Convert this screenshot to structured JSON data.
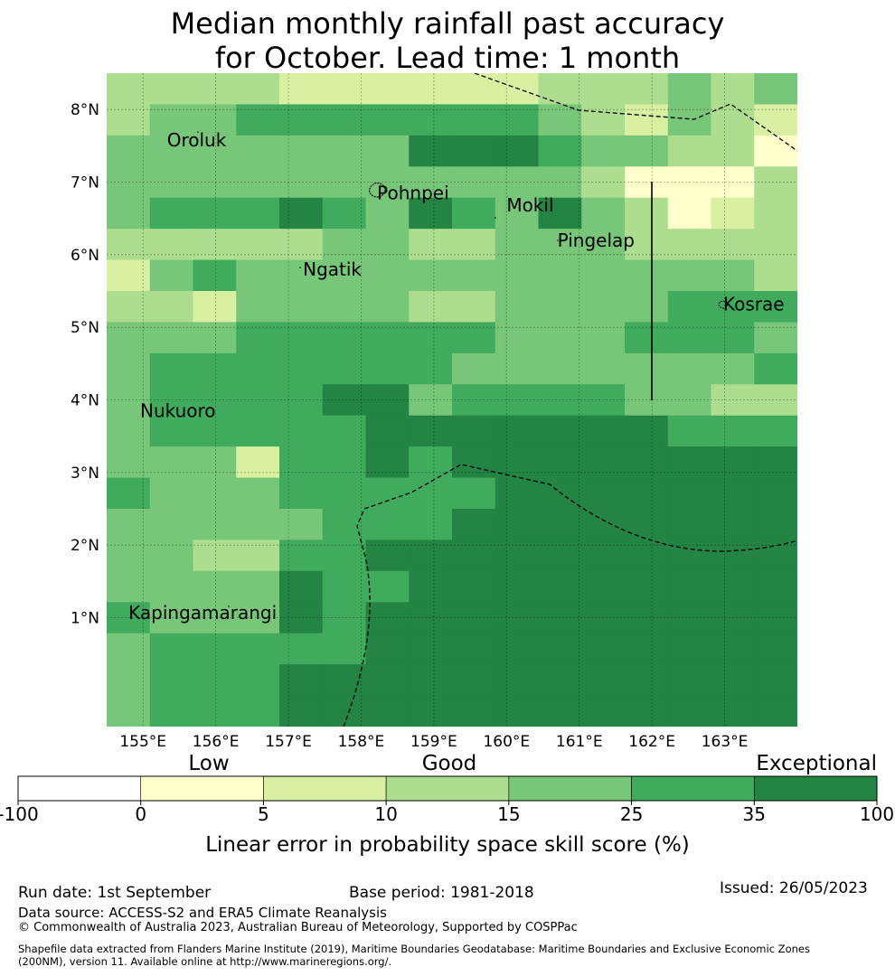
{
  "title_line1": "Median monthly rainfall past accuracy",
  "title_line2": "for October. Lead time: 1 month",
  "map": {
    "lon_range": [
      154.5,
      164.0
    ],
    "lat_range": [
      -0.5,
      8.5
    ],
    "cell_deg": 0.833,
    "lon_ticks": [
      {
        "value": 155,
        "label": "155°E"
      },
      {
        "value": 156,
        "label": "156°E"
      },
      {
        "value": 157,
        "label": "157°E"
      },
      {
        "value": 158,
        "label": "158°E"
      },
      {
        "value": 159,
        "label": "159°E"
      },
      {
        "value": 160,
        "label": "160°E"
      },
      {
        "value": 161,
        "label": "161°E"
      },
      {
        "value": 162,
        "label": "162°E"
      },
      {
        "value": 163,
        "label": "163°E"
      }
    ],
    "lat_ticks": [
      {
        "value": 8,
        "label": "8°N"
      },
      {
        "value": 7,
        "label": "7°N"
      },
      {
        "value": 6,
        "label": "6°N"
      },
      {
        "value": 5,
        "label": "5°N"
      },
      {
        "value": 4,
        "label": "4°N"
      },
      {
        "value": 3,
        "label": "3°N"
      },
      {
        "value": 2,
        "label": "2°N"
      },
      {
        "value": 1,
        "label": "1°N"
      }
    ],
    "places": [
      {
        "name": "Oroluk",
        "lon": 155.33,
        "lat": 7.58
      },
      {
        "name": "Pohnpei",
        "lon": 158.22,
        "lat": 6.85
      },
      {
        "name": "Mokil",
        "lon": 160.0,
        "lat": 6.68
      },
      {
        "name": "Pingelap",
        "lon": 160.7,
        "lat": 6.2
      },
      {
        "name": "Ngatik",
        "lon": 157.2,
        "lat": 5.8
      },
      {
        "name": "Kosrae",
        "lon": 162.98,
        "lat": 5.32
      },
      {
        "name": "Nukuoro",
        "lon": 154.96,
        "lat": 3.85
      },
      {
        "name": "Kapingamarangi",
        "lon": 154.8,
        "lat": 1.07
      }
    ],
    "grid_levels": [
      "3333222222333434",
      "3445555555432432",
      "4444444666544331",
      "4444444444431113",
      "4555654654643123",
      "3333344334443333",
      "2454444444444443",
      "3324444334444555",
      "4445555554445554",
      "4555555544444445",
      "4555566455554433",
      "4555556666666555",
      "4442556566666666",
      "5444555556666666",
      "4444455566666666",
      "4433556666666666",
      "4444655666666666",
      "5444656666666666",
      "4555556666666666",
      "4555666666666666",
      "4555666666666666"
    ]
  },
  "colorbar": {
    "categories": [
      "Low",
      "Good",
      "Exceptional"
    ],
    "ticks": [
      "-100",
      "0",
      "5",
      "10",
      "15",
      "25",
      "35",
      "100"
    ],
    "colors": [
      "#ffffff",
      "#ffffcc",
      "#d9f0a3",
      "#addd8e",
      "#78c679",
      "#41ab5d",
      "#238443"
    ],
    "label": "Linear error in probability space skill score (%)"
  },
  "footer": {
    "run_date": "Run date: 1st September",
    "base_period": "Base period: 1981-2018",
    "issued": "Issued: 26/05/2023",
    "data_source": "Data source: ACCESS-S2 and ERA5 Climate Reanalysis",
    "copyright": "© Commonwealth of Australia 2023, Australian Bureau of Meteorology, Supported by COSPPac",
    "shapefile_line1": "Shapefile data extracted from Flanders Marine Institute (2019), Maritime Boundaries Geodatabase: Maritime Boundaries and Exclusive Economic Zones",
    "shapefile_line2": "(200NM), version 11. Available online at http://www.marineregions.org/."
  }
}
